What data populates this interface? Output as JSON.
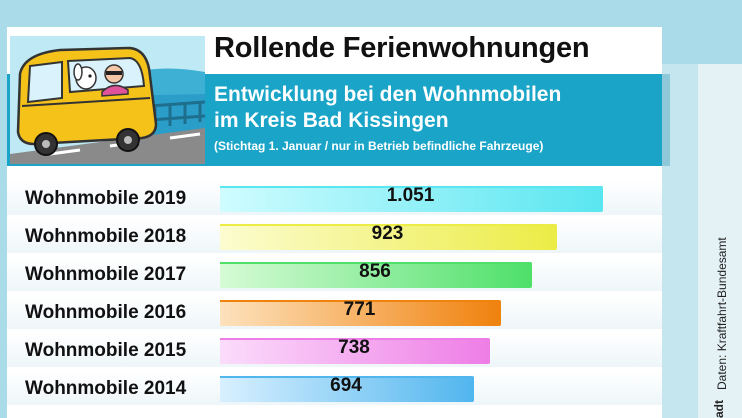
{
  "header": {
    "title": "Rollende Ferienwohnungen",
    "subtitle_line1": "Entwicklung bei den Wohnmobilen",
    "subtitle_line2": "im Kreis Bad Kissingen",
    "note": "(Stichtag 1. Januar / nur in Betrieb befindliche Fahrzeuge)"
  },
  "source": {
    "text": "Daten: Kraftfahrt-Bundesamt",
    "tail": "adt"
  },
  "colors": {
    "band": "#1aa5c8",
    "background": "#a9dbe8"
  },
  "chart_data": {
    "type": "bar",
    "orientation": "horizontal",
    "title": "Rollende Ferienwohnungen",
    "subtitle": "Entwicklung bei den Wohnmobilen im Kreis Bad Kissingen",
    "categories": [
      "Wohnmobile 2019",
      "Wohnmobile 2018",
      "Wohnmobile 2017",
      "Wohnmobile 2016",
      "Wohnmobile 2015",
      "Wohnmobile 2014"
    ],
    "values": [
      1051,
      923,
      856,
      771,
      738,
      694
    ],
    "value_labels": [
      "1.051",
      "923",
      "856",
      "771",
      "738",
      "694"
    ],
    "bar_colors": [
      [
        "#cffcff",
        "#5ae6f0"
      ],
      [
        "#fcfcd0",
        "#ecec46"
      ],
      [
        "#d6fbd6",
        "#4fe06a"
      ],
      [
        "#fde2bd",
        "#f0820e"
      ],
      [
        "#fbdcfb",
        "#ee7ee6"
      ],
      [
        "#d8f0ff",
        "#52b6ee"
      ]
    ],
    "grid": false
  }
}
